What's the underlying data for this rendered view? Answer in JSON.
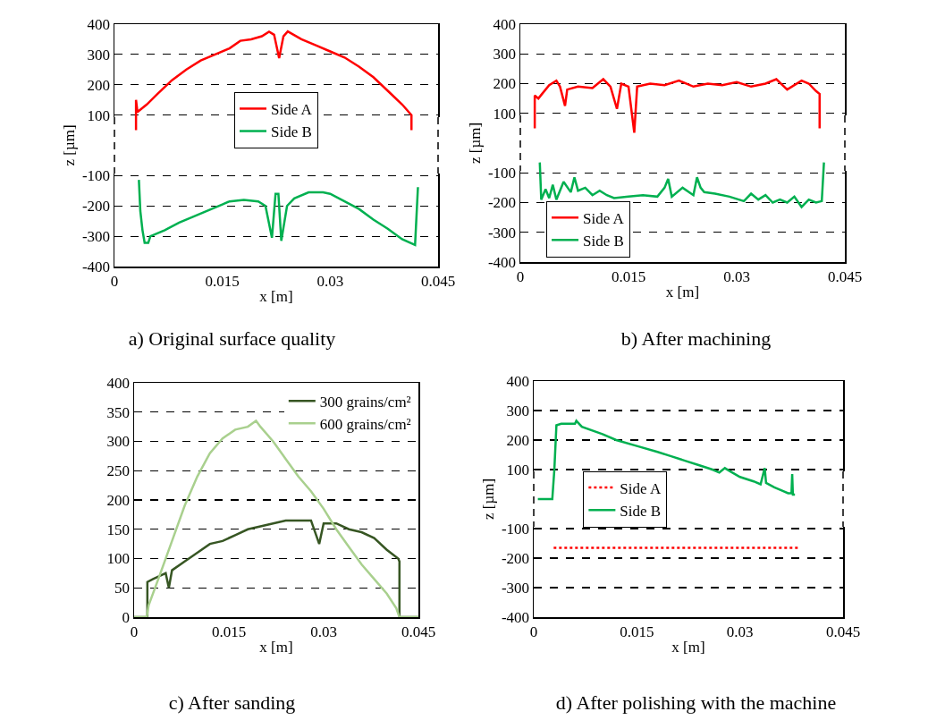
{
  "chart_data": [
    {
      "type": "line",
      "annotations": [
        "a) Original surface quality"
      ],
      "xlabel": "x [m]",
      "ylabel": "z [µm]",
      "xlim": [
        0,
        0.045
      ],
      "xticks": [
        0,
        0.015,
        0.03,
        0.045
      ],
      "ylim": [
        -400,
        400
      ],
      "yticks": [
        -400,
        -300,
        -200,
        -100,
        100,
        200,
        300,
        400
      ],
      "grid": "y",
      "legend": "top",
      "series": [
        {
          "name": "Side A",
          "color": "#ff0000",
          "x": [
            0.003,
            0.003,
            0.0032,
            0.0045,
            0.006,
            0.008,
            0.01,
            0.012,
            0.014,
            0.016,
            0.0175,
            0.019,
            0.0205,
            0.0215,
            0.0222,
            0.0229,
            0.0235,
            0.0241,
            0.026,
            0.028,
            0.03,
            0.032,
            0.034,
            0.036,
            0.038,
            0.04,
            0.0413,
            0.0413
          ],
          "values": [
            50,
            150,
            110,
            135,
            170,
            215,
            250,
            280,
            300,
            320,
            345,
            350,
            360,
            375,
            365,
            288,
            360,
            376,
            350,
            330,
            310,
            290,
            260,
            225,
            180,
            135,
            100,
            50
          ]
        },
        {
          "name": "Side B",
          "color": "#00b050",
          "x": [
            0.0034,
            0.0036,
            0.0039,
            0.0042,
            0.0047,
            0.005,
            0.007,
            0.009,
            0.011,
            0.013,
            0.015,
            0.016,
            0.018,
            0.02,
            0.021,
            0.0219,
            0.0224,
            0.0228,
            0.0232,
            0.024,
            0.025,
            0.027,
            0.029,
            0.03,
            0.032,
            0.034,
            0.036,
            0.038,
            0.04,
            0.0418,
            0.0422
          ],
          "values": [
            -114,
            -217,
            -280,
            -322,
            -322,
            -300,
            -280,
            -255,
            -235,
            -215,
            -195,
            -185,
            -180,
            -185,
            -200,
            -305,
            -160,
            -160,
            -315,
            -200,
            -175,
            -155,
            -155,
            -160,
            -185,
            -210,
            -245,
            -275,
            -310,
            -329,
            -138
          ]
        }
      ]
    },
    {
      "type": "line",
      "annotations": [
        "b) After machining"
      ],
      "xlabel": "x [m]",
      "ylabel": "z [µm]",
      "xlim": [
        0,
        0.045
      ],
      "xticks": [
        0,
        0.015,
        0.03,
        0.045
      ],
      "ylim": [
        -400,
        400
      ],
      "yticks": [
        -400,
        -300,
        -200,
        -100,
        100,
        200,
        300,
        400
      ],
      "grid": "y",
      "legend": "bottom left",
      "series": [
        {
          "name": "Side A",
          "color": "#ff0000",
          "x": [
            0.002,
            0.002,
            0.0025,
            0.003,
            0.004,
            0.005,
            0.0055,
            0.0062,
            0.0065,
            0.008,
            0.01,
            0.0115,
            0.0125,
            0.0134,
            0.014,
            0.015,
            0.0158,
            0.0162,
            0.018,
            0.02,
            0.022,
            0.024,
            0.026,
            0.028,
            0.03,
            0.032,
            0.034,
            0.0355,
            0.037,
            0.039,
            0.04,
            0.041,
            0.0415,
            0.0415
          ],
          "values": [
            50,
            160,
            150,
            165,
            195,
            210,
            190,
            125,
            180,
            190,
            185,
            215,
            190,
            115,
            200,
            190,
            35,
            190,
            200,
            195,
            210,
            190,
            200,
            195,
            205,
            190,
            200,
            215,
            180,
            210,
            200,
            175,
            165,
            50
          ]
        },
        {
          "name": "Side B",
          "color": "#00b050",
          "x": [
            0.0027,
            0.0029,
            0.0035,
            0.004,
            0.0045,
            0.005,
            0.006,
            0.007,
            0.0075,
            0.008,
            0.009,
            0.01,
            0.011,
            0.012,
            0.013,
            0.015,
            0.017,
            0.019,
            0.02,
            0.0205,
            0.021,
            0.0225,
            0.024,
            0.0245,
            0.025,
            0.0255,
            0.027,
            0.029,
            0.031,
            0.032,
            0.033,
            0.034,
            0.035,
            0.036,
            0.037,
            0.038,
            0.039,
            0.04,
            0.041,
            0.0418,
            0.0421
          ],
          "values": [
            -65,
            -190,
            -155,
            -185,
            -140,
            -190,
            -130,
            -165,
            -115,
            -160,
            -150,
            -175,
            -160,
            -175,
            -185,
            -180,
            -175,
            -180,
            -150,
            -120,
            -180,
            -150,
            -175,
            -115,
            -150,
            -165,
            -170,
            -180,
            -195,
            -170,
            -190,
            -175,
            -200,
            -190,
            -200,
            -180,
            -215,
            -190,
            -200,
            -195,
            -65
          ]
        }
      ]
    },
    {
      "type": "line",
      "annotations": [
        "c) After sanding"
      ],
      "xlabel": "x [m]",
      "xlim": [
        0,
        0.045
      ],
      "xticks": [
        0,
        0.015,
        0.03,
        0.045
      ],
      "ylim": [
        0,
        400
      ],
      "yticks": [
        0,
        50,
        100,
        150,
        200,
        250,
        300,
        350,
        400
      ],
      "grid": "y",
      "legend": "top right",
      "series": [
        {
          "name": "300 grains/cm²",
          "color": "#375623",
          "x": [
            0,
            0.0021,
            0.0021,
            0.003,
            0.004,
            0.005,
            0.0055,
            0.006,
            0.008,
            0.01,
            0.012,
            0.014,
            0.016,
            0.018,
            0.02,
            0.022,
            0.024,
            0.026,
            0.028,
            0.0293,
            0.03,
            0.032,
            0.034,
            0.036,
            0.038,
            0.04,
            0.0418,
            0.042,
            0.042,
            0.045
          ],
          "values": [
            0,
            0,
            60,
            65,
            70,
            75,
            50,
            80,
            95,
            110,
            125,
            130,
            140,
            150,
            155,
            160,
            165,
            165,
            165,
            125,
            160,
            160,
            150,
            145,
            135,
            115,
            100,
            95,
            0,
            0
          ]
        },
        {
          "name": "600 grains/cm²",
          "color": "#a9d08e",
          "x": [
            0,
            0.002,
            0.0023,
            0.004,
            0.006,
            0.008,
            0.01,
            0.012,
            0.014,
            0.016,
            0.018,
            0.0193,
            0.02,
            0.022,
            0.024,
            0.026,
            0.028,
            0.03,
            0.032,
            0.034,
            0.036,
            0.038,
            0.04,
            0.0415,
            0.042,
            0.045
          ],
          "values": [
            0,
            0,
            20,
            70,
            130,
            190,
            240,
            280,
            305,
            320,
            325,
            335,
            325,
            300,
            270,
            240,
            215,
            185,
            150,
            120,
            90,
            65,
            40,
            15,
            0,
            0
          ]
        }
      ]
    },
    {
      "type": "line",
      "annotations": [
        "d) After polishing with the machine"
      ],
      "xlabel": "x [m]",
      "ylabel": "z [µm]",
      "xlim": [
        0,
        0.045
      ],
      "xticks": [
        0,
        0.015,
        0.03,
        0.045
      ],
      "ylim": [
        -400,
        400
      ],
      "yticks": [
        -400,
        -300,
        -200,
        -100,
        100,
        200,
        300,
        400
      ],
      "grid": "y",
      "legend": "left",
      "series": [
        {
          "name": "Side A",
          "color": "#ff0000",
          "line_style": "dotted",
          "x": [
            0.0029,
            0.0386
          ],
          "values": [
            -165,
            -165
          ]
        },
        {
          "name": "Side B",
          "color": "#00b050",
          "x": [
            0.0006,
            0.0027,
            0.003,
            0.0033,
            0.004,
            0.006,
            0.0062,
            0.007,
            0.01,
            0.012,
            0.015,
            0.018,
            0.02,
            0.022,
            0.024,
            0.026,
            0.027,
            0.0278,
            0.0285,
            0.03,
            0.032,
            0.033,
            0.0336,
            0.0338,
            0.035,
            0.036,
            0.037,
            0.0375,
            0.0376,
            0.0377,
            0.038
          ],
          "values": [
            0,
            0,
            100,
            250,
            255,
            255,
            265,
            245,
            220,
            200,
            180,
            160,
            145,
            130,
            115,
            100,
            90,
            105,
            95,
            75,
            60,
            50,
            105,
            55,
            40,
            30,
            20,
            20,
            85,
            15,
            15
          ]
        }
      ]
    }
  ]
}
